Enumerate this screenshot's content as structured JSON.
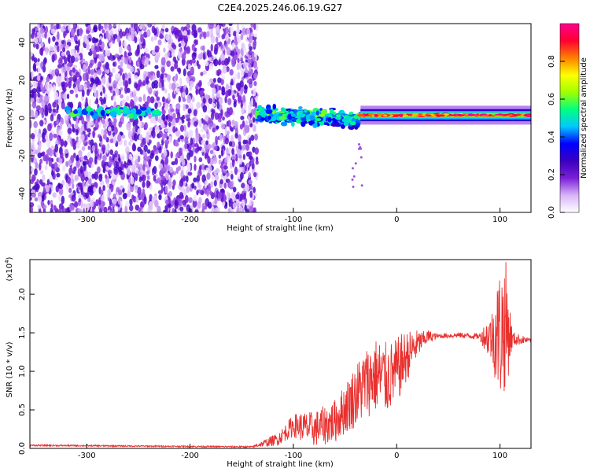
{
  "title": "C2E4.2025.246.06.19.G27",
  "chart_data": [
    {
      "type": "heatmap",
      "name": "spectrogram",
      "xlabel": "Height of straight line (km)",
      "ylabel": "Frequency (Hz)",
      "xlim": [
        -355,
        130
      ],
      "ylim": [
        -50,
        50
      ],
      "xticks": [
        -300,
        -200,
        -100,
        0,
        100
      ],
      "yticks": [
        -40,
        -20,
        0,
        20,
        40
      ],
      "colorbar": {
        "label": "Normalized spectral amplitude",
        "range": [
          0,
          1
        ],
        "ticks": [
          0.0,
          0.2,
          0.4,
          0.6,
          0.8
        ],
        "tick_labels": [
          "0.0",
          "0.2",
          "0.4",
          "0.6",
          "0.8"
        ],
        "colors": [
          "#ffffff",
          "#d8b4f8",
          "#7a1fd8",
          "#3a00c0",
          "#0000ff",
          "#00c8ff",
          "#00ff80",
          "#a0ff00",
          "#ffff00",
          "#ff8000",
          "#ff0030",
          "#ff0090"
        ]
      },
      "features": [
        {
          "region": "noise",
          "x_range": [
            -355,
            -135
          ],
          "y_range": [
            -50,
            50
          ],
          "amplitude": 0.15
        },
        {
          "region": "signal_blobs",
          "x_range": [
            -320,
            -230
          ],
          "center_freq": 3,
          "amplitude": 0.35
        },
        {
          "region": "signal_spread",
          "x_range": [
            -135,
            -35
          ],
          "center_freq": 2,
          "spread_hz": 8,
          "amplitude": 0.4
        },
        {
          "region": "signal_line",
          "x_range": [
            -35,
            130
          ],
          "center_freq": 1.5,
          "amplitude": 0.9
        }
      ]
    },
    {
      "type": "line",
      "name": "snr",
      "xlabel": "Height of straight line (km)",
      "ylabel": "SNR (10 * v/v)",
      "scale_label": "(x10",
      "scale_exponent": "4",
      "xlim": [
        -355,
        130
      ],
      "ylim": [
        0,
        2.45
      ],
      "xticks": [
        -300,
        -200,
        -100,
        0,
        100
      ],
      "yticks": [
        0.0,
        0.5,
        1.0,
        1.5,
        2.0
      ],
      "ytick_labels": [
        "0.0",
        "0.5",
        "1.0",
        "1.5",
        "2.0"
      ],
      "color": "#e8302e",
      "profile": [
        {
          "x": -355,
          "y": 0.04
        },
        {
          "x": -250,
          "y": 0.03
        },
        {
          "x": -140,
          "y": 0.02
        },
        {
          "x": -115,
          "y": 0.12
        },
        {
          "x": -100,
          "y": 0.3
        },
        {
          "x": -80,
          "y": 0.25
        },
        {
          "x": -60,
          "y": 0.35
        },
        {
          "x": -45,
          "y": 0.6
        },
        {
          "x": -30,
          "y": 0.85
        },
        {
          "x": -20,
          "y": 0.95
        },
        {
          "x": -10,
          "y": 0.9
        },
        {
          "x": 0,
          "y": 1.0
        },
        {
          "x": 10,
          "y": 1.2
        },
        {
          "x": 20,
          "y": 1.35
        },
        {
          "x": 30,
          "y": 1.45
        },
        {
          "x": 60,
          "y": 1.47
        },
        {
          "x": 85,
          "y": 1.45
        },
        {
          "x": 92,
          "y": 1.45
        },
        {
          "x": 100,
          "y": 1.5
        },
        {
          "x": 105,
          "y": 1.6
        },
        {
          "x": 112,
          "y": 1.42
        },
        {
          "x": 130,
          "y": 1.4
        }
      ],
      "noise": [
        {
          "x": -355,
          "amp": 0.01
        },
        {
          "x": -140,
          "amp": 0.01
        },
        {
          "x": -110,
          "amp": 0.1
        },
        {
          "x": -90,
          "amp": 0.2
        },
        {
          "x": -55,
          "amp": 0.3
        },
        {
          "x": -35,
          "amp": 0.45
        },
        {
          "x": -15,
          "amp": 0.5
        },
        {
          "x": 5,
          "amp": 0.4
        },
        {
          "x": 25,
          "amp": 0.12
        },
        {
          "x": 40,
          "amp": 0.03
        },
        {
          "x": 80,
          "amp": 0.04
        },
        {
          "x": 92,
          "amp": 0.35
        },
        {
          "x": 100,
          "amp": 0.9
        },
        {
          "x": 106,
          "amp": 0.85
        },
        {
          "x": 112,
          "amp": 0.1
        },
        {
          "x": 130,
          "amp": 0.02
        }
      ]
    }
  ]
}
